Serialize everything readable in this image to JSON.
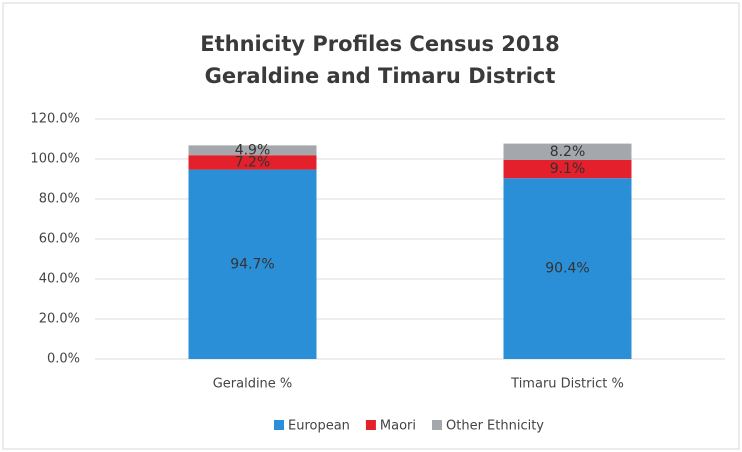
{
  "chart_data": {
    "type": "stacked_bar",
    "title": "Ethnicity Profiles Census 2018",
    "subtitle": "Geraldine and Timaru District",
    "categories": [
      "Geraldine %",
      "Timaru District %"
    ],
    "series": [
      {
        "name": "European",
        "color": "#2b8fd8",
        "values": [
          94.7,
          90.4
        ],
        "value_labels": [
          "94.7%",
          "90.4%"
        ]
      },
      {
        "name": "Maori",
        "color": "#e3202b",
        "values": [
          7.2,
          9.1
        ],
        "value_labels": [
          "7.2%",
          "9.1%"
        ]
      },
      {
        "name": "Other Ethnicity",
        "color": "#a4a7ab",
        "values": [
          4.9,
          8.2
        ],
        "value_labels": [
          "4.9%",
          "8.2%"
        ]
      }
    ],
    "ylim": [
      0,
      120
    ],
    "yticks": [
      {
        "value": 0,
        "label": "0.0%"
      },
      {
        "value": 20,
        "label": "20.0%"
      },
      {
        "value": 40,
        "label": "40.0%"
      },
      {
        "value": 60,
        "label": "60.0%"
      },
      {
        "value": 80,
        "label": "80.0%"
      },
      {
        "value": 100,
        "label": "100.0%"
      },
      {
        "value": 120,
        "label": "120.0%"
      }
    ],
    "grid": true,
    "legend": "bottom"
  }
}
